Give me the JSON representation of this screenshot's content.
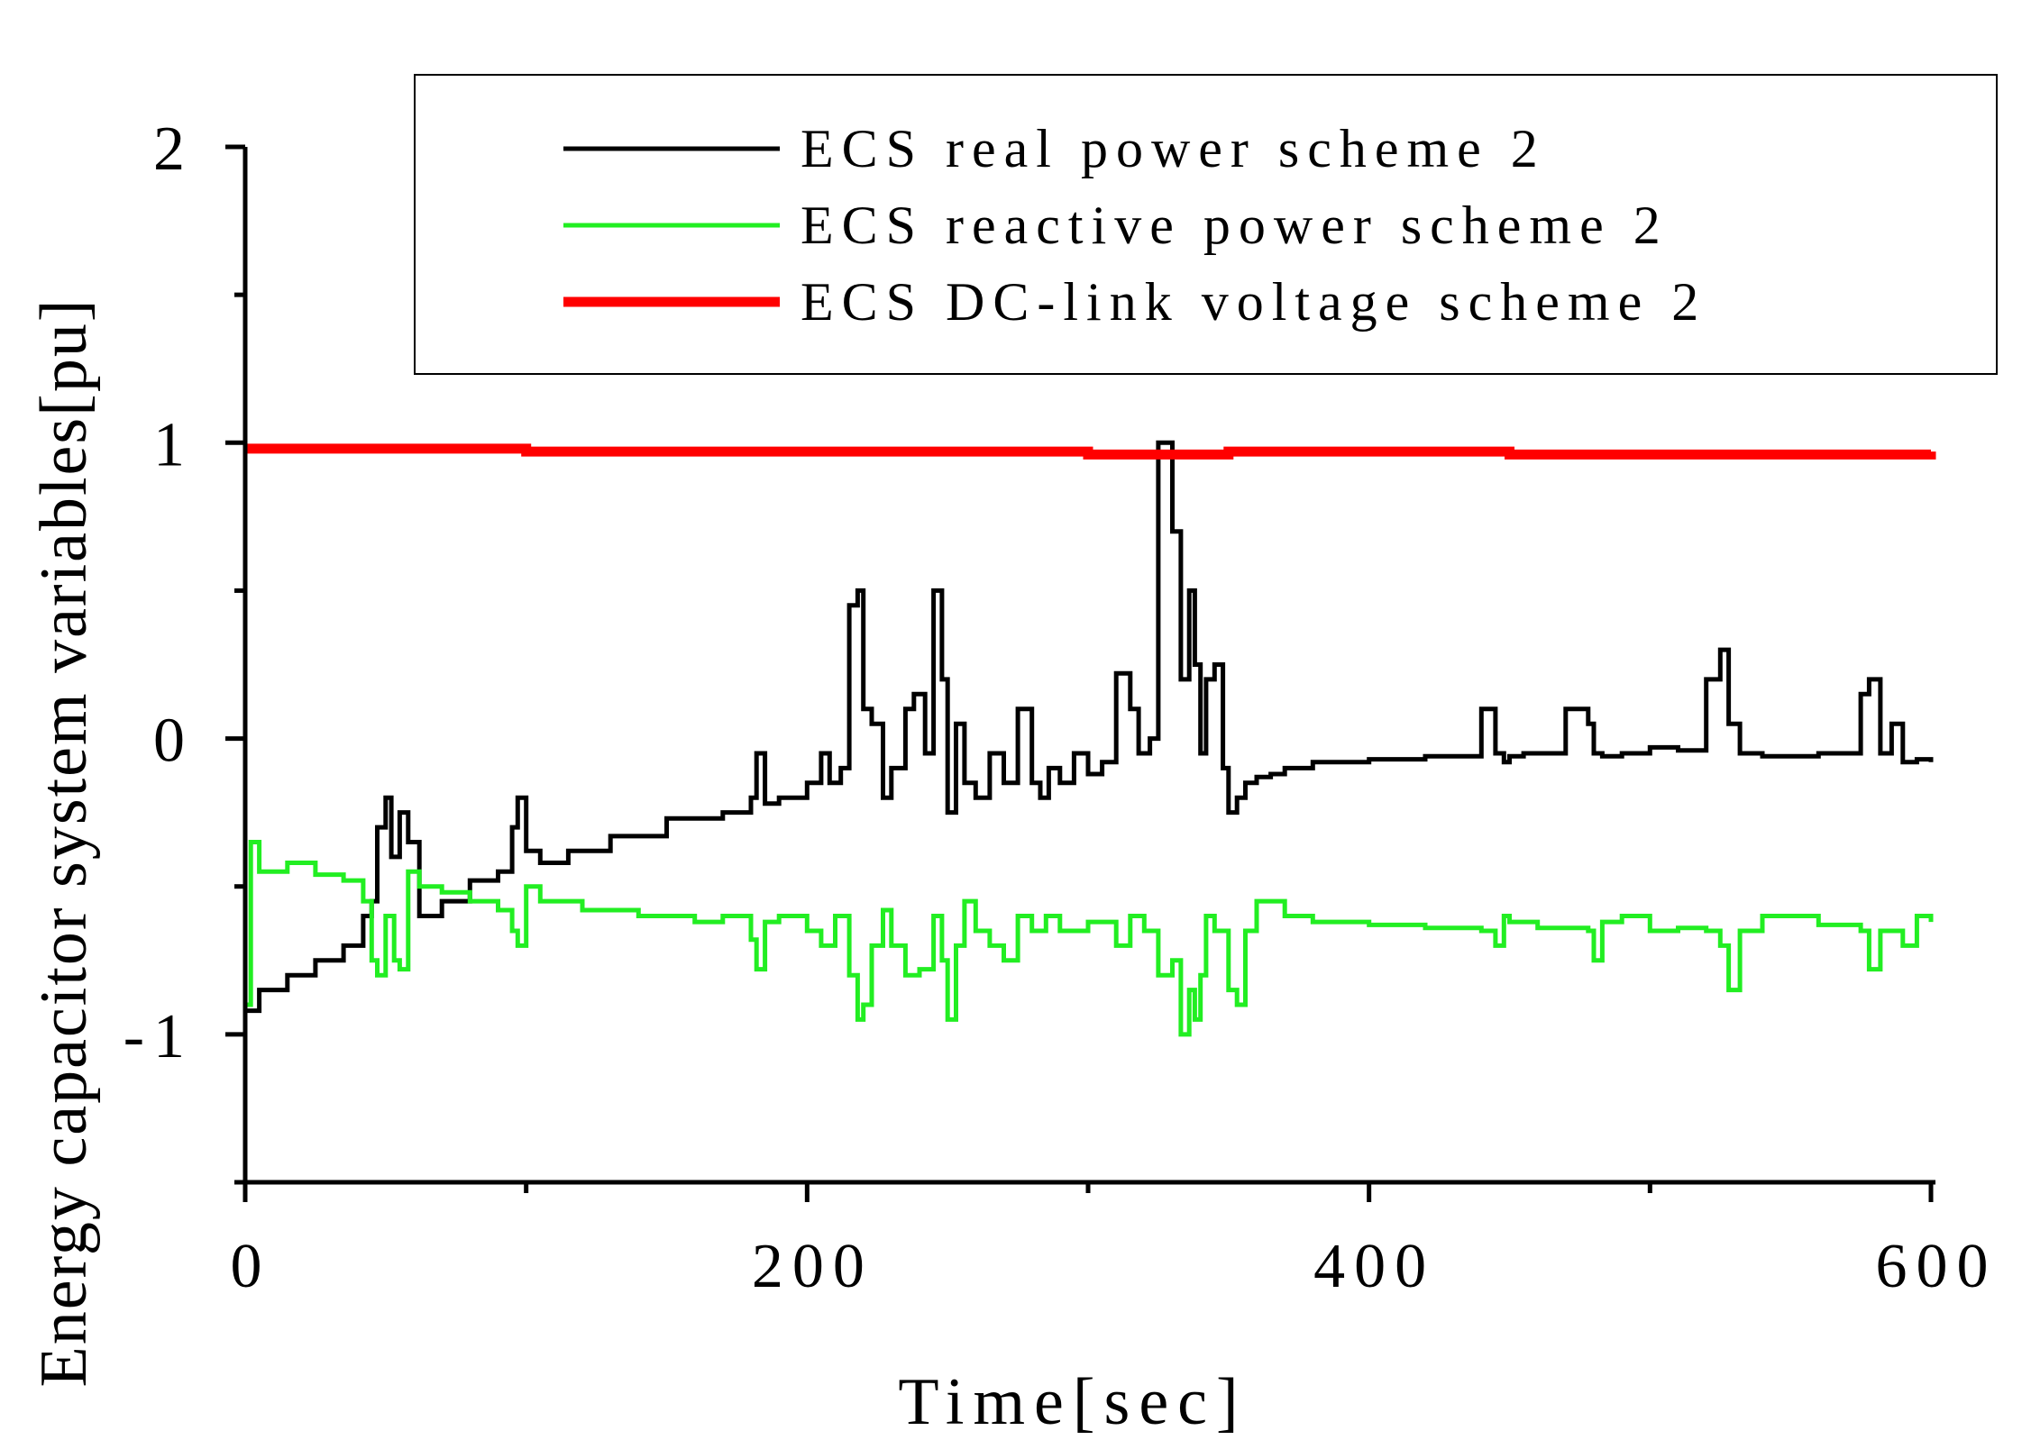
{
  "chart_data": {
    "type": "line",
    "xlabel": "Time[sec]",
    "ylabel": "Energy capacitor system variables[pu]",
    "xlim": [
      0,
      600
    ],
    "ylim": [
      -1.5,
      2
    ],
    "xticks": [
      0,
      200,
      400,
      600
    ],
    "yticks": [
      -1,
      0,
      1,
      2
    ],
    "xtick_labels": [
      "0",
      "200",
      "400",
      "600"
    ],
    "ytick_labels": [
      "-1",
      "0",
      "1",
      "2"
    ],
    "grid": false,
    "legend_position": "top-right",
    "series": [
      {
        "name": "ECS real power scheme 2",
        "color": "#000000",
        "x": [
          0,
          5,
          15,
          25,
          35,
          42,
          45,
          47,
          50,
          52,
          55,
          58,
          62,
          70,
          80,
          90,
          95,
          97,
          100,
          105,
          115,
          130,
          150,
          170,
          180,
          182,
          185,
          190,
          200,
          205,
          208,
          212,
          215,
          218,
          220,
          223,
          227,
          230,
          235,
          238,
          242,
          245,
          248,
          250,
          253,
          256,
          260,
          265,
          270,
          275,
          280,
          283,
          286,
          290,
          295,
          300,
          305,
          310,
          315,
          318,
          322,
          325,
          330,
          333,
          336,
          338,
          340,
          342,
          345,
          348,
          350,
          353,
          356,
          360,
          365,
          370,
          380,
          400,
          420,
          440,
          445,
          448,
          450,
          455,
          470,
          478,
          480,
          483,
          490,
          500,
          510,
          520,
          525,
          528,
          532,
          540,
          560,
          575,
          578,
          582,
          586,
          590,
          595,
          600
        ],
        "y": [
          -0.92,
          -0.85,
          -0.8,
          -0.75,
          -0.7,
          -0.6,
          -0.55,
          -0.3,
          -0.2,
          -0.4,
          -0.25,
          -0.35,
          -0.6,
          -0.55,
          -0.48,
          -0.45,
          -0.3,
          -0.2,
          -0.38,
          -0.42,
          -0.38,
          -0.33,
          -0.27,
          -0.25,
          -0.2,
          -0.05,
          -0.22,
          -0.2,
          -0.15,
          -0.05,
          -0.15,
          -0.1,
          0.45,
          0.5,
          0.1,
          0.05,
          -0.2,
          -0.1,
          0.1,
          0.15,
          -0.05,
          0.5,
          0.2,
          -0.25,
          0.05,
          -0.15,
          -0.2,
          -0.05,
          -0.15,
          0.1,
          -0.15,
          -0.2,
          -0.1,
          -0.15,
          -0.05,
          -0.12,
          -0.08,
          0.22,
          0.1,
          -0.05,
          0.0,
          1.0,
          0.7,
          0.2,
          0.5,
          0.25,
          -0.05,
          0.2,
          0.25,
          -0.1,
          -0.25,
          -0.2,
          -0.15,
          -0.13,
          -0.12,
          -0.1,
          -0.08,
          -0.07,
          -0.06,
          0.1,
          -0.05,
          -0.08,
          -0.06,
          -0.05,
          0.1,
          0.05,
          -0.05,
          -0.06,
          -0.05,
          -0.03,
          -0.04,
          0.2,
          0.3,
          0.05,
          -0.05,
          -0.06,
          -0.05,
          0.15,
          0.2,
          -0.05,
          0.05,
          -0.08,
          -0.07,
          -0.08
        ]
      },
      {
        "name": "ECS reactive power scheme 2",
        "color": "#22ee22",
        "x": [
          0,
          2,
          5,
          15,
          25,
          35,
          42,
          45,
          47,
          50,
          53,
          55,
          58,
          62,
          70,
          80,
          90,
          95,
          97,
          100,
          105,
          120,
          140,
          160,
          170,
          180,
          182,
          185,
          190,
          200,
          205,
          210,
          215,
          218,
          220,
          223,
          227,
          230,
          235,
          240,
          245,
          248,
          250,
          253,
          256,
          260,
          265,
          270,
          275,
          280,
          285,
          290,
          300,
          310,
          315,
          320,
          325,
          330,
          333,
          336,
          338,
          340,
          342,
          345,
          350,
          353,
          356,
          360,
          370,
          380,
          400,
          420,
          440,
          445,
          448,
          450,
          460,
          478,
          480,
          483,
          490,
          500,
          510,
          520,
          525,
          528,
          532,
          540,
          560,
          575,
          578,
          582,
          590,
          595,
          600
        ],
        "y": [
          -0.9,
          -0.35,
          -0.45,
          -0.42,
          -0.46,
          -0.48,
          -0.55,
          -0.75,
          -0.8,
          -0.6,
          -0.75,
          -0.78,
          -0.45,
          -0.5,
          -0.52,
          -0.55,
          -0.58,
          -0.65,
          -0.7,
          -0.5,
          -0.55,
          -0.58,
          -0.6,
          -0.62,
          -0.6,
          -0.68,
          -0.78,
          -0.62,
          -0.6,
          -0.65,
          -0.7,
          -0.6,
          -0.8,
          -0.95,
          -0.9,
          -0.7,
          -0.58,
          -0.7,
          -0.8,
          -0.78,
          -0.6,
          -0.75,
          -0.95,
          -0.7,
          -0.55,
          -0.65,
          -0.7,
          -0.75,
          -0.6,
          -0.65,
          -0.6,
          -0.65,
          -0.62,
          -0.7,
          -0.6,
          -0.65,
          -0.8,
          -0.75,
          -1.0,
          -0.85,
          -0.95,
          -0.8,
          -0.6,
          -0.65,
          -0.85,
          -0.9,
          -0.65,
          -0.55,
          -0.6,
          -0.62,
          -0.63,
          -0.64,
          -0.65,
          -0.7,
          -0.6,
          -0.62,
          -0.64,
          -0.65,
          -0.75,
          -0.62,
          -0.6,
          -0.65,
          -0.64,
          -0.65,
          -0.7,
          -0.85,
          -0.65,
          -0.6,
          -0.63,
          -0.65,
          -0.78,
          -0.65,
          -0.7,
          -0.6,
          -0.62
        ]
      },
      {
        "name": "ECS DC-link voltage scheme 2",
        "color": "#ff0000",
        "x": [
          0,
          50,
          100,
          150,
          200,
          250,
          300,
          350,
          400,
          450,
          500,
          550,
          600
        ],
        "y": [
          0.98,
          0.98,
          0.97,
          0.97,
          0.97,
          0.97,
          0.96,
          0.97,
          0.97,
          0.96,
          0.96,
          0.96,
          0.97
        ]
      }
    ]
  }
}
